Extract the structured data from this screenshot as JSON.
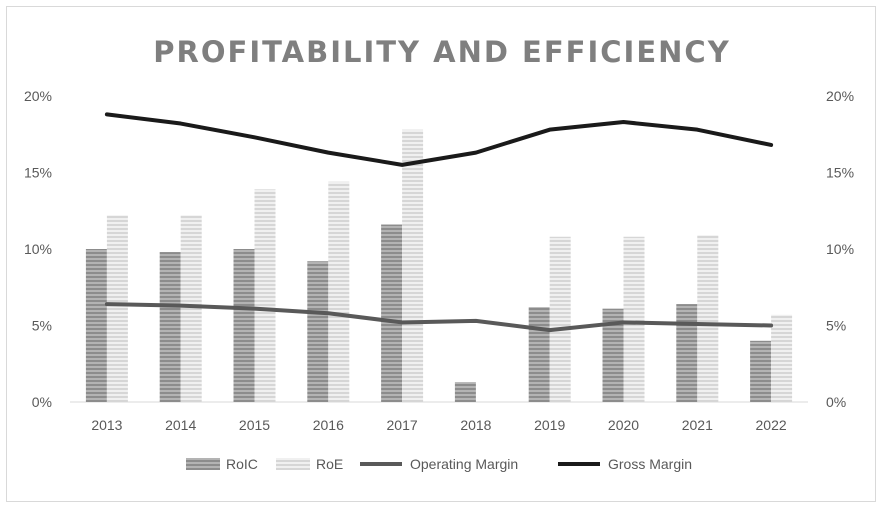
{
  "chart_data": {
    "type": "bar",
    "title": "PROFITABILITY AND EFFICIENCY",
    "categories": [
      "2013",
      "2014",
      "2015",
      "2016",
      "2017",
      "2018",
      "2019",
      "2020",
      "2021",
      "2022"
    ],
    "y_ticks": [
      "0%",
      "5%",
      "10%",
      "15%",
      "20%"
    ],
    "y_tick_values": [
      0,
      5,
      10,
      15,
      20
    ],
    "ylim": [
      0,
      20
    ],
    "y2_ticks": [
      "0%",
      "5%",
      "10%",
      "15%",
      "20%"
    ],
    "y2lim": [
      0,
      20
    ],
    "grid": false,
    "legend_position": "bottom",
    "series": [
      {
        "name": "RoIC",
        "kind": "bar",
        "axis": "left",
        "color": "#9a9a9a",
        "values": [
          10.0,
          9.8,
          10.0,
          9.2,
          11.6,
          1.3,
          6.2,
          6.1,
          6.4,
          4.0
        ]
      },
      {
        "name": "RoE",
        "kind": "bar",
        "axis": "left",
        "color": "#e4e4e4",
        "values": [
          12.2,
          12.2,
          13.9,
          14.4,
          17.8,
          0,
          10.8,
          10.8,
          10.9,
          5.7
        ]
      },
      {
        "name": "Operating Margin",
        "kind": "line",
        "axis": "right",
        "color": "#595959",
        "values": [
          6.4,
          6.3,
          6.1,
          5.8,
          5.2,
          5.3,
          4.7,
          5.2,
          5.1,
          5.0
        ]
      },
      {
        "name": "Gross Margin",
        "kind": "line",
        "axis": "right",
        "color": "#1a1a1a",
        "values": [
          18.8,
          18.2,
          17.3,
          16.3,
          15.5,
          16.3,
          17.8,
          18.3,
          17.8,
          16.8
        ]
      }
    ]
  }
}
